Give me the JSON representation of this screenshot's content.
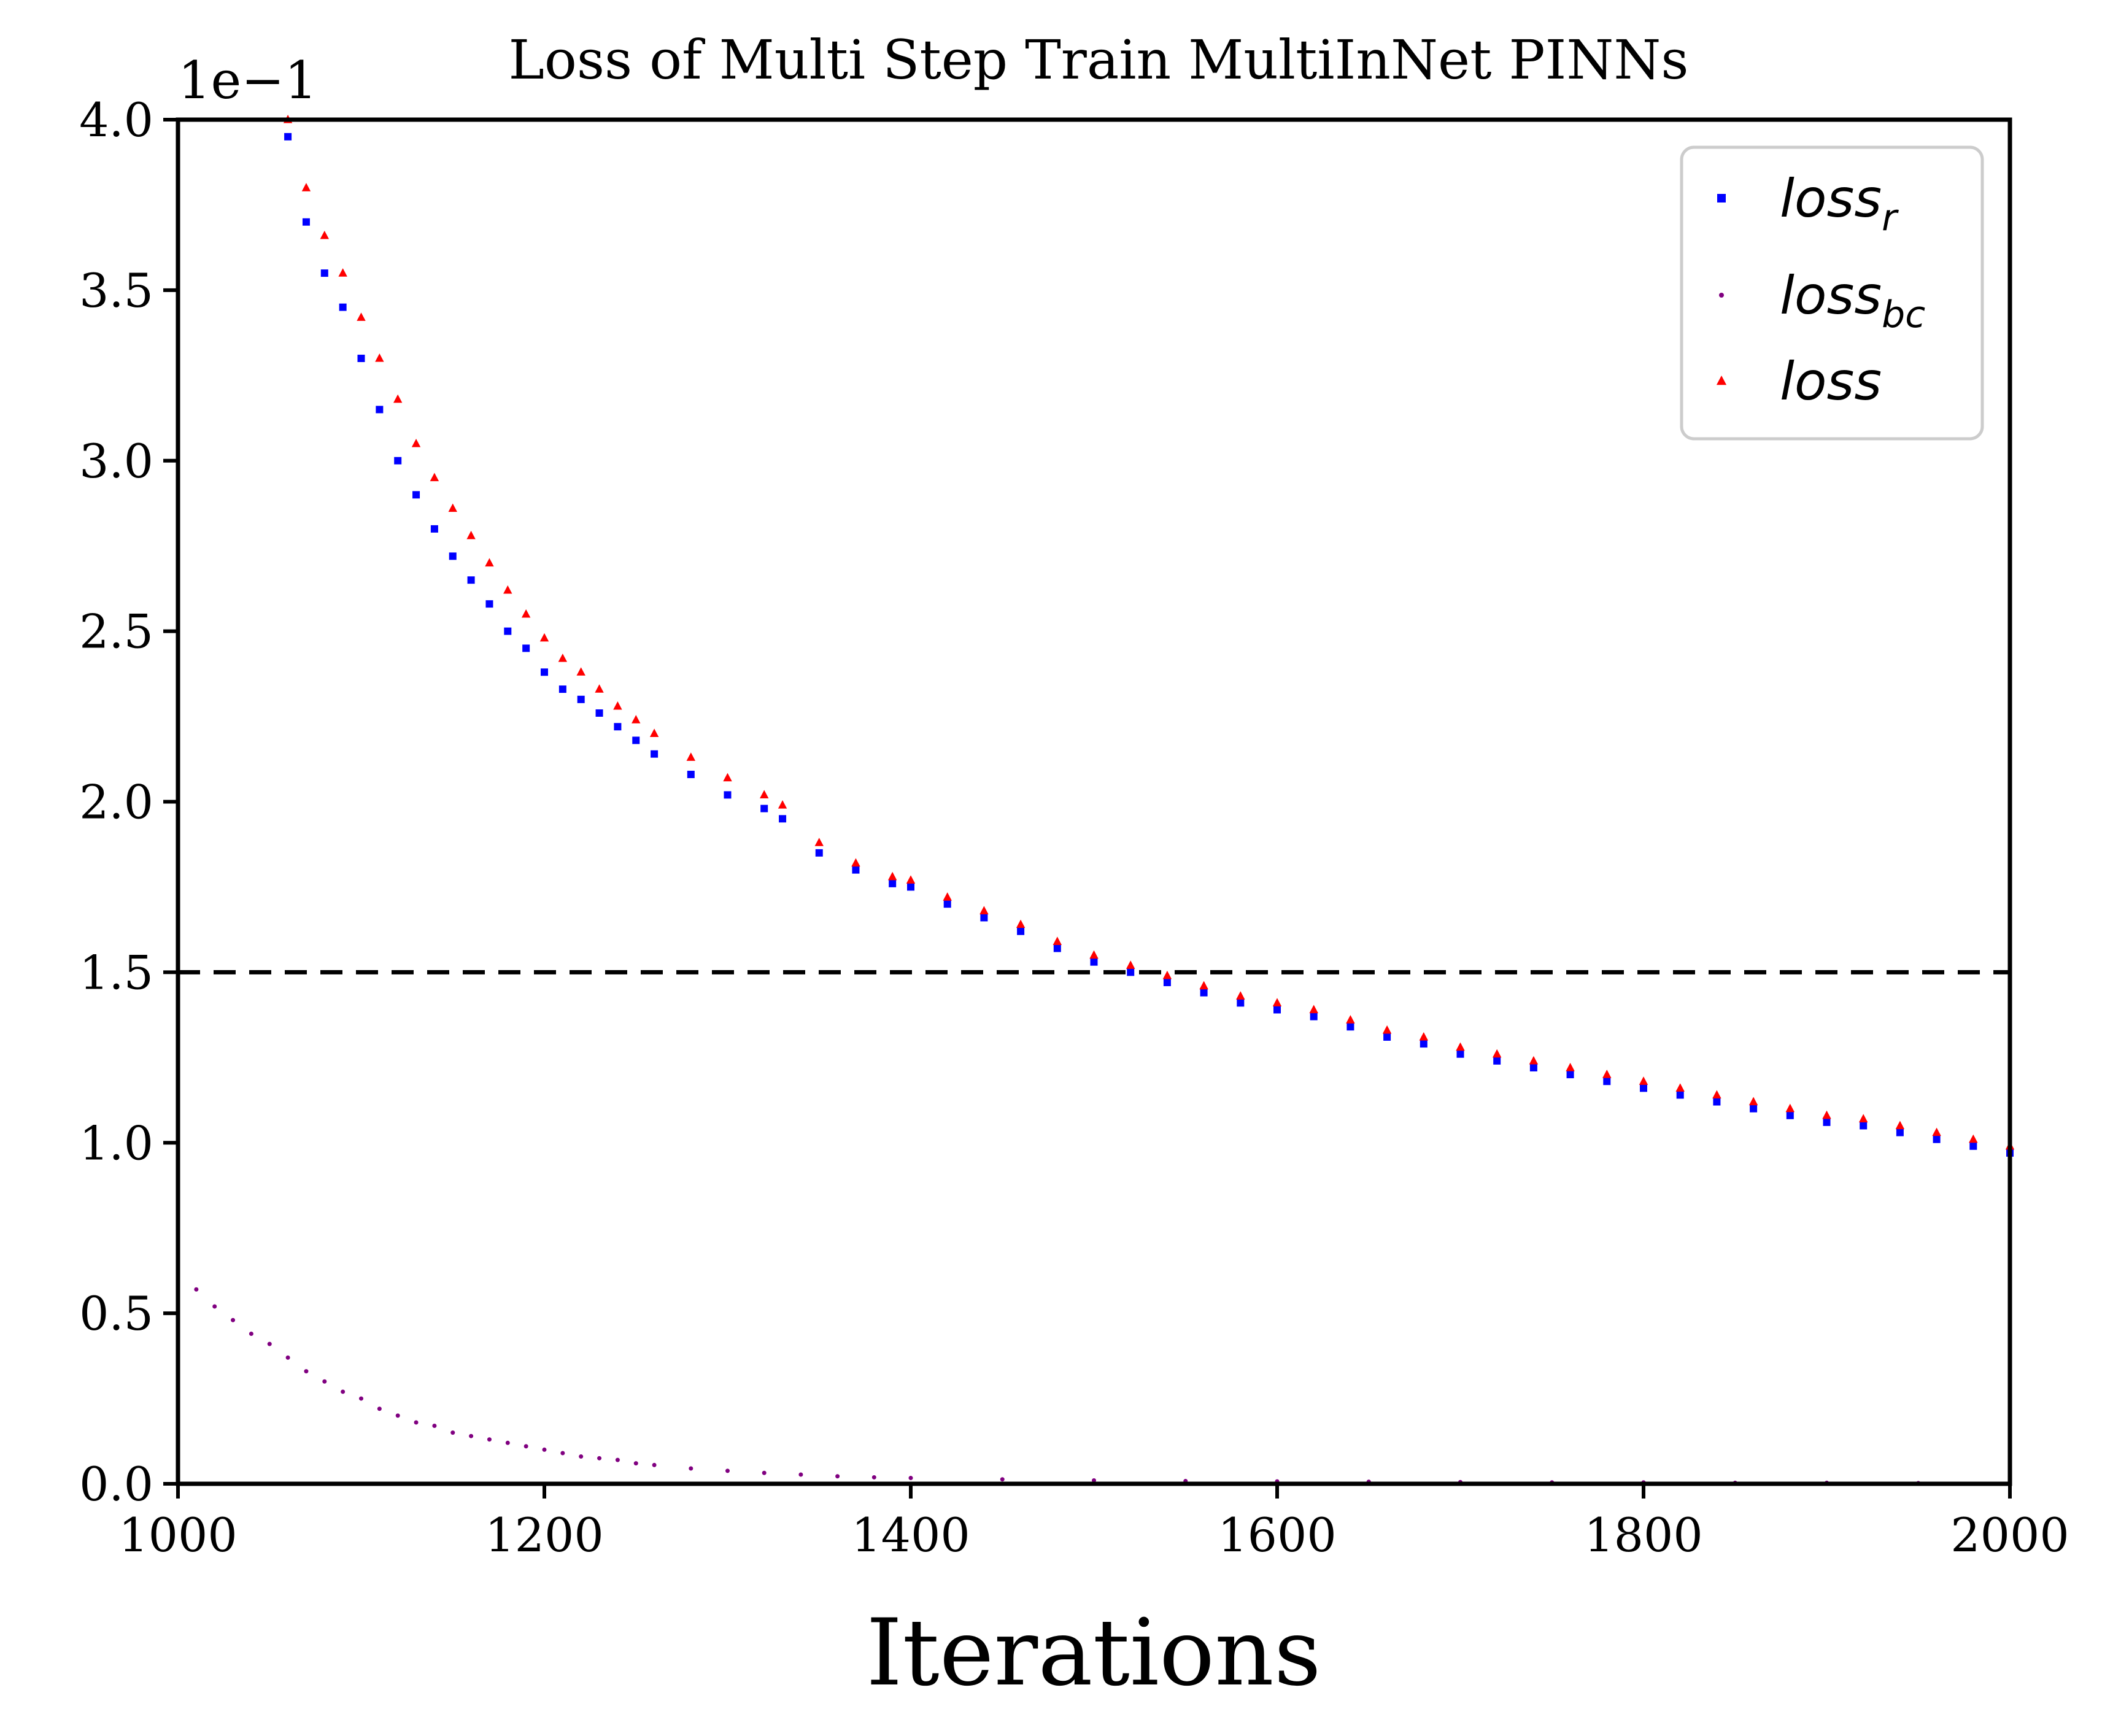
{
  "chart_data": {
    "type": "scatter",
    "title": "Loss of Multi Step Train MultiInNet PINNs",
    "xlabel": "Iterations",
    "ylabel": "",
    "offset_text": "1e−1",
    "xlim": [
      1000,
      2000
    ],
    "ylim": [
      0,
      4.0
    ],
    "x_ticks": [
      "1000",
      "1200",
      "1400",
      "1600",
      "1800",
      "2000"
    ],
    "y_ticks": [
      "0.0",
      "0.5",
      "1.0",
      "1.5",
      "2.0",
      "2.5",
      "3.0",
      "3.5",
      "4.0"
    ],
    "threshold_line": {
      "y": 1.5,
      "style": "dashed",
      "color": "#000000"
    },
    "grid": false,
    "legend": {
      "placement": "top-right",
      "entries": [
        {
          "base": "loss",
          "sub": "r"
        },
        {
          "base": "loss",
          "sub": "bc"
        },
        {
          "base": "loss",
          "sub": ""
        }
      ]
    },
    "series": [
      {
        "name": "loss_r",
        "color": "#0000ff",
        "marker": "square",
        "x": [
          1060,
          1070,
          1080,
          1090,
          1100,
          1110,
          1120,
          1130,
          1140,
          1150,
          1160,
          1170,
          1180,
          1190,
          1200,
          1210,
          1220,
          1230,
          1240,
          1250,
          1260,
          1280,
          1300,
          1320,
          1330,
          1350,
          1370,
          1390,
          1400,
          1420,
          1440,
          1460,
          1480,
          1500,
          1520,
          1540,
          1560,
          1580,
          1600,
          1620,
          1640,
          1660,
          1680,
          1700,
          1720,
          1740,
          1760,
          1780,
          1800,
          1820,
          1840,
          1860,
          1880,
          1900,
          1920,
          1940,
          1960,
          1980,
          2000
        ],
        "y": [
          3.95,
          3.7,
          3.55,
          3.45,
          3.3,
          3.15,
          3.0,
          2.9,
          2.8,
          2.72,
          2.65,
          2.58,
          2.5,
          2.45,
          2.38,
          2.33,
          2.3,
          2.26,
          2.22,
          2.18,
          2.14,
          2.08,
          2.02,
          1.98,
          1.95,
          1.85,
          1.8,
          1.76,
          1.75,
          1.7,
          1.66,
          1.62,
          1.57,
          1.53,
          1.5,
          1.47,
          1.44,
          1.41,
          1.39,
          1.37,
          1.34,
          1.31,
          1.29,
          1.26,
          1.24,
          1.22,
          1.2,
          1.18,
          1.16,
          1.14,
          1.12,
          1.1,
          1.08,
          1.06,
          1.05,
          1.03,
          1.01,
          0.99,
          0.97
        ]
      },
      {
        "name": "loss_bc",
        "color": "#800080",
        "marker": "point",
        "x": [
          1000,
          1010,
          1020,
          1030,
          1040,
          1050,
          1060,
          1070,
          1080,
          1090,
          1100,
          1110,
          1120,
          1130,
          1140,
          1150,
          1160,
          1170,
          1180,
          1190,
          1200,
          1210,
          1220,
          1230,
          1240,
          1250,
          1260,
          1280,
          1300,
          1320,
          1340,
          1360,
          1380,
          1400,
          1450,
          1500,
          1550,
          1600,
          1650,
          1700,
          1750,
          1800,
          1850,
          1900,
          1950,
          2000
        ],
        "y": [
          0.62,
          0.57,
          0.52,
          0.48,
          0.44,
          0.41,
          0.37,
          0.33,
          0.3,
          0.27,
          0.25,
          0.22,
          0.2,
          0.18,
          0.17,
          0.15,
          0.14,
          0.13,
          0.12,
          0.11,
          0.1,
          0.09,
          0.08,
          0.075,
          0.07,
          0.06,
          0.055,
          0.045,
          0.038,
          0.032,
          0.027,
          0.022,
          0.019,
          0.017,
          0.013,
          0.01,
          0.008,
          0.007,
          0.006,
          0.005,
          0.004,
          0.004,
          0.003,
          0.003,
          0.002,
          0.002
        ]
      },
      {
        "name": "loss",
        "color": "#ff0000",
        "marker": "triangle",
        "x": [
          1060,
          1070,
          1080,
          1090,
          1100,
          1110,
          1120,
          1130,
          1140,
          1150,
          1160,
          1170,
          1180,
          1190,
          1200,
          1210,
          1220,
          1230,
          1240,
          1250,
          1260,
          1280,
          1300,
          1320,
          1330,
          1350,
          1370,
          1390,
          1400,
          1420,
          1440,
          1460,
          1480,
          1500,
          1520,
          1540,
          1560,
          1580,
          1600,
          1620,
          1640,
          1660,
          1680,
          1700,
          1720,
          1740,
          1760,
          1780,
          1800,
          1820,
          1840,
          1860,
          1880,
          1900,
          1920,
          1940,
          1960,
          1980,
          2000
        ],
        "y": [
          4.0,
          3.8,
          3.66,
          3.55,
          3.42,
          3.3,
          3.18,
          3.05,
          2.95,
          2.86,
          2.78,
          2.7,
          2.62,
          2.55,
          2.48,
          2.42,
          2.38,
          2.33,
          2.28,
          2.24,
          2.2,
          2.13,
          2.07,
          2.02,
          1.99,
          1.88,
          1.82,
          1.78,
          1.77,
          1.72,
          1.68,
          1.64,
          1.59,
          1.55,
          1.52,
          1.49,
          1.46,
          1.43,
          1.41,
          1.39,
          1.36,
          1.33,
          1.31,
          1.28,
          1.26,
          1.24,
          1.22,
          1.2,
          1.18,
          1.16,
          1.14,
          1.12,
          1.1,
          1.08,
          1.07,
          1.05,
          1.03,
          1.01,
          0.99
        ]
      }
    ]
  }
}
